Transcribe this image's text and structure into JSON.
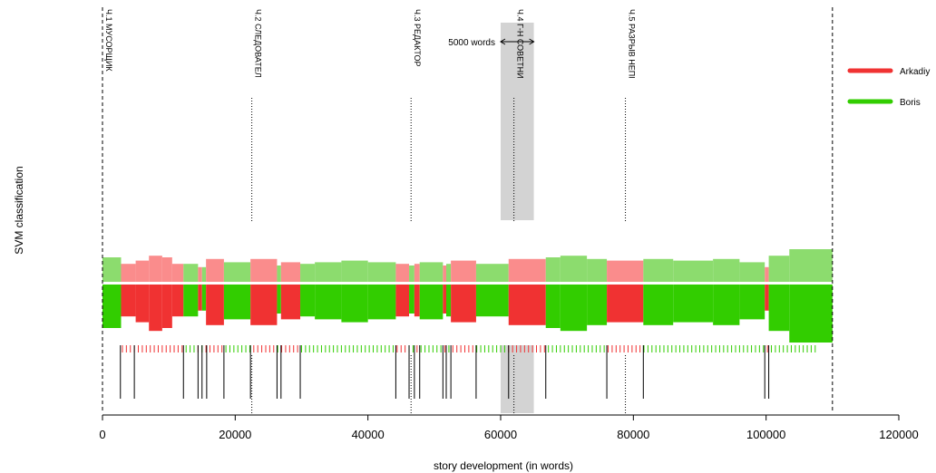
{
  "chart_data": {
    "type": "area",
    "title": "",
    "xlabel": "story development (in words)",
    "ylabel": "SVM classification",
    "xlim": [
      0,
      120000
    ],
    "x_ticks": [
      0,
      20000,
      40000,
      60000,
      80000,
      100000,
      120000
    ],
    "x_tick_labels": [
      "0",
      "20000",
      "40000",
      "60000",
      "80000",
      "100000",
      "120000"
    ],
    "text_end": 110000,
    "legend": {
      "placement": "right",
      "entries": [
        {
          "name": "Arkadiy",
          "color": "#f03232"
        },
        {
          "name": "Boris",
          "color": "#32cd00"
        }
      ]
    },
    "colors": {
      "red": "#f03232",
      "green": "#32cd00",
      "light_red": "#fa8c8c",
      "light_green": "#8cdc6e",
      "highlight": "#d3d3d3"
    },
    "chapters": [
      {
        "x": 0,
        "label": "Ч.1 МУСОРЩИК"
      },
      {
        "x": 22500,
        "label": "Ч.2 СЛЕДОВАТЕЛ"
      },
      {
        "x": 46500,
        "label": "Ч.3 РЕДАКТОР"
      },
      {
        "x": 62000,
        "label": "Ч.4 Г-Н СОВЕТНИ"
      },
      {
        "x": 78800,
        "label": "Ч.5 РАЗРЫВ НЕПІ"
      }
    ],
    "highlight": {
      "x_start": 60000,
      "x_end": 65000,
      "label": "5000 words"
    },
    "segments": [
      {
        "start": 0,
        "end": 2800,
        "author": "Boris",
        "magnitude": 0.75
      },
      {
        "start": 2800,
        "end": 5000,
        "author": "Arkadiy",
        "magnitude": 0.55
      },
      {
        "start": 5000,
        "end": 7000,
        "author": "Arkadiy",
        "magnitude": 0.65
      },
      {
        "start": 7000,
        "end": 9000,
        "author": "Arkadiy",
        "magnitude": 0.8
      },
      {
        "start": 9000,
        "end": 10500,
        "author": "Arkadiy",
        "magnitude": 0.75
      },
      {
        "start": 10500,
        "end": 12200,
        "author": "Arkadiy",
        "magnitude": 0.55
      },
      {
        "start": 12200,
        "end": 14400,
        "author": "Boris",
        "magnitude": 0.55
      },
      {
        "start": 14400,
        "end": 15000,
        "author": "Arkadiy",
        "magnitude": 0.45
      },
      {
        "start": 15000,
        "end": 15600,
        "author": "Boris",
        "magnitude": 0.45
      },
      {
        "start": 15600,
        "end": 18300,
        "author": "Arkadiy",
        "magnitude": 0.7
      },
      {
        "start": 18300,
        "end": 22300,
        "author": "Boris",
        "magnitude": 0.6
      },
      {
        "start": 22300,
        "end": 26300,
        "author": "Arkadiy",
        "magnitude": 0.7
      },
      {
        "start": 26300,
        "end": 26900,
        "author": "Boris",
        "magnitude": 0.5
      },
      {
        "start": 26900,
        "end": 29800,
        "author": "Arkadiy",
        "magnitude": 0.6
      },
      {
        "start": 29800,
        "end": 32000,
        "author": "Boris",
        "magnitude": 0.55
      },
      {
        "start": 32000,
        "end": 36000,
        "author": "Boris",
        "magnitude": 0.6
      },
      {
        "start": 36000,
        "end": 40000,
        "author": "Boris",
        "magnitude": 0.65
      },
      {
        "start": 40000,
        "end": 44200,
        "author": "Boris",
        "magnitude": 0.6
      },
      {
        "start": 44200,
        "end": 46200,
        "author": "Arkadiy",
        "magnitude": 0.55
      },
      {
        "start": 46200,
        "end": 47000,
        "author": "Boris",
        "magnitude": 0.5
      },
      {
        "start": 47000,
        "end": 47800,
        "author": "Arkadiy",
        "magnitude": 0.55
      },
      {
        "start": 47800,
        "end": 51300,
        "author": "Boris",
        "magnitude": 0.6
      },
      {
        "start": 51300,
        "end": 51800,
        "author": "Arkadiy",
        "magnitude": 0.5
      },
      {
        "start": 51800,
        "end": 52500,
        "author": "Boris",
        "magnitude": 0.55
      },
      {
        "start": 52500,
        "end": 56300,
        "author": "Arkadiy",
        "magnitude": 0.65
      },
      {
        "start": 56300,
        "end": 61200,
        "author": "Boris",
        "magnitude": 0.55
      },
      {
        "start": 61200,
        "end": 66800,
        "author": "Arkadiy",
        "magnitude": 0.7
      },
      {
        "start": 66800,
        "end": 69000,
        "author": "Boris",
        "magnitude": 0.75
      },
      {
        "start": 69000,
        "end": 73000,
        "author": "Boris",
        "magnitude": 0.8
      },
      {
        "start": 73000,
        "end": 76000,
        "author": "Boris",
        "magnitude": 0.7
      },
      {
        "start": 76000,
        "end": 81500,
        "author": "Arkadiy",
        "magnitude": 0.65
      },
      {
        "start": 81500,
        "end": 86000,
        "author": "Boris",
        "magnitude": 0.7
      },
      {
        "start": 86000,
        "end": 92000,
        "author": "Boris",
        "magnitude": 0.65
      },
      {
        "start": 92000,
        "end": 96000,
        "author": "Boris",
        "magnitude": 0.7
      },
      {
        "start": 96000,
        "end": 99800,
        "author": "Boris",
        "magnitude": 0.6
      },
      {
        "start": 99800,
        "end": 100400,
        "author": "Arkadiy",
        "magnitude": 0.45
      },
      {
        "start": 100400,
        "end": 103500,
        "author": "Boris",
        "magnitude": 0.8
      },
      {
        "start": 103500,
        "end": 110000,
        "author": "Boris",
        "magnitude": 1.0
      }
    ],
    "boundaries": [
      2700,
      4800,
      12200,
      14400,
      15000,
      15700,
      18300,
      22300,
      26300,
      26900,
      29800,
      44200,
      46200,
      47000,
      47800,
      51300,
      51800,
      52500,
      56300,
      61200,
      66800,
      76000,
      81500,
      99800,
      100400
    ]
  }
}
